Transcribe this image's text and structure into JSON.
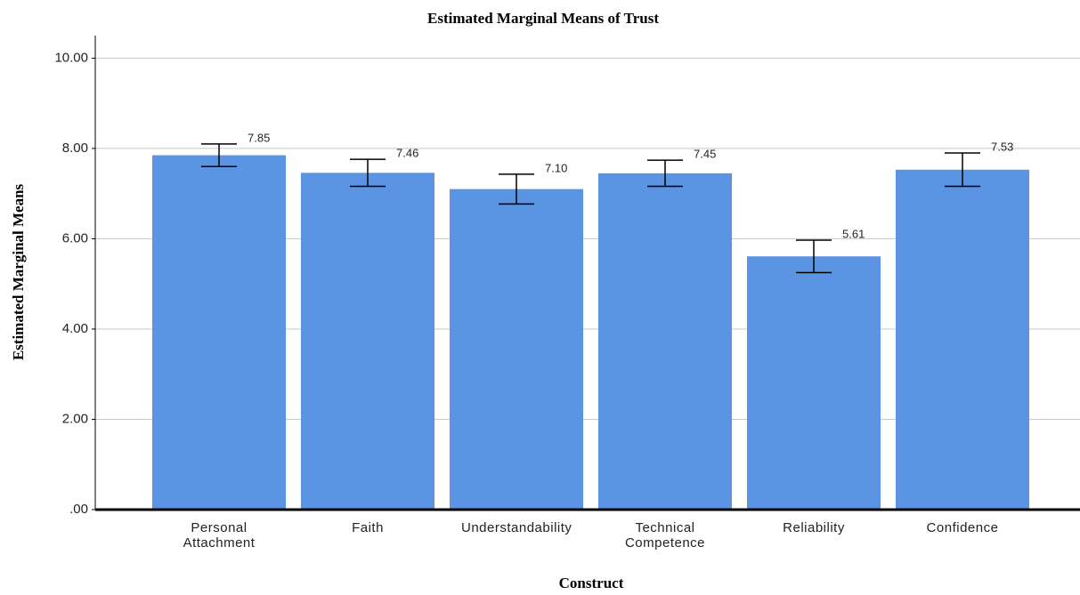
{
  "chart_data": {
    "type": "bar",
    "title": "Estimated Marginal Means of Trust",
    "x_label": "Construct",
    "y_label": "Estimated Marginal Means",
    "categories": [
      "Personal Attachment",
      "Faith",
      "Understandability",
      "Technical Competence",
      "Reliability",
      "Confidence"
    ],
    "values": [
      7.85,
      7.46,
      7.1,
      7.45,
      5.61,
      7.53
    ],
    "value_labels": [
      "7.85",
      "7.46",
      "7.10",
      "7.45",
      "5.61",
      "7.53"
    ],
    "errors": [
      0.25,
      0.3,
      0.33,
      0.29,
      0.36,
      0.37
    ],
    "color": "#5b94e2",
    "ylim": [
      0,
      10.5
    ],
    "yticks": [
      {
        "value": 0,
        "label": ".00"
      },
      {
        "value": 2,
        "label": "2.00"
      },
      {
        "value": 4,
        "label": "4.00"
      },
      {
        "value": 6,
        "label": "6.00"
      },
      {
        "value": 8,
        "label": "8.00"
      },
      {
        "value": 10,
        "label": "10.00"
      }
    ],
    "grid": true
  }
}
